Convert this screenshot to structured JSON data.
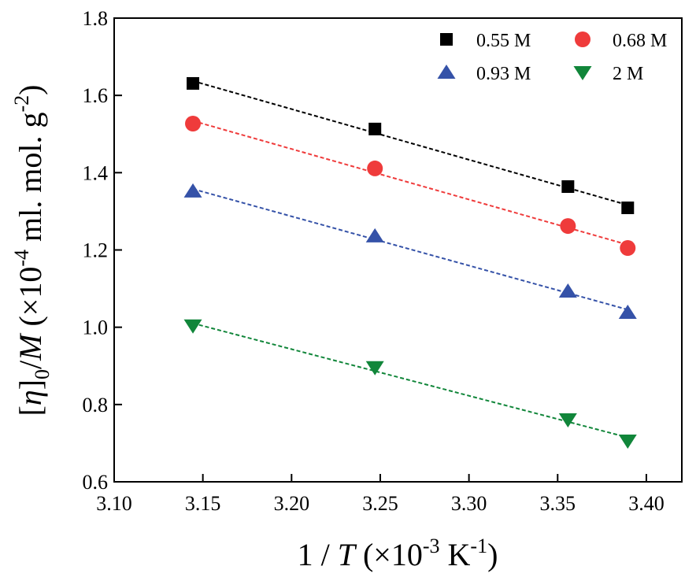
{
  "chart_data": {
    "type": "scatter",
    "xlabel": [
      "1 / ",
      "T",
      " (×10",
      "-3",
      " K",
      "-1",
      ")"
    ],
    "ylabel": [
      "[",
      "η",
      "]",
      "0",
      "/",
      "M",
      " (×10",
      "-4",
      " ml. mol. g",
      "-2",
      ")"
    ],
    "xlim": [
      3.1,
      3.42
    ],
    "xticks": [
      {
        "value": 3.1,
        "label": "3.10"
      },
      {
        "value": 3.15,
        "label": "3.15"
      },
      {
        "value": 3.2,
        "label": "3.20"
      },
      {
        "value": 3.25,
        "label": "3.25"
      },
      {
        "value": 3.3,
        "label": "3.30"
      },
      {
        "value": 3.35,
        "label": "3.35"
      },
      {
        "value": 3.4,
        "label": "3.40"
      }
    ],
    "ylim": [
      0.6,
      1.8
    ],
    "yticks": [
      0.6,
      0.8,
      {
        "value": 1.0,
        "label": "1.0"
      },
      1.2,
      1.4,
      1.6,
      1.8
    ],
    "x": [
      3.1444,
      3.247,
      3.3558,
      3.3895
    ],
    "fit_lines": "dashed",
    "legend": "upper right",
    "series": [
      {
        "name": "0.55 M",
        "color": "#000000",
        "marker": "square",
        "values": [
          1.631,
          1.513,
          1.364,
          1.309
        ]
      },
      {
        "name": "0.68 M",
        "color": "#ef3b3b",
        "marker": "circle",
        "values": [
          1.527,
          1.411,
          1.262,
          1.205
        ]
      },
      {
        "name": "0.93 M",
        "color": "#3552a8",
        "marker": "triangle-up",
        "values": [
          1.352,
          1.236,
          1.093,
          1.038
        ]
      },
      {
        "name": "2 M",
        "color": "#11863a",
        "marker": "triangle-down",
        "values": [
          1.004,
          0.896,
          0.761,
          0.706
        ]
      }
    ]
  }
}
